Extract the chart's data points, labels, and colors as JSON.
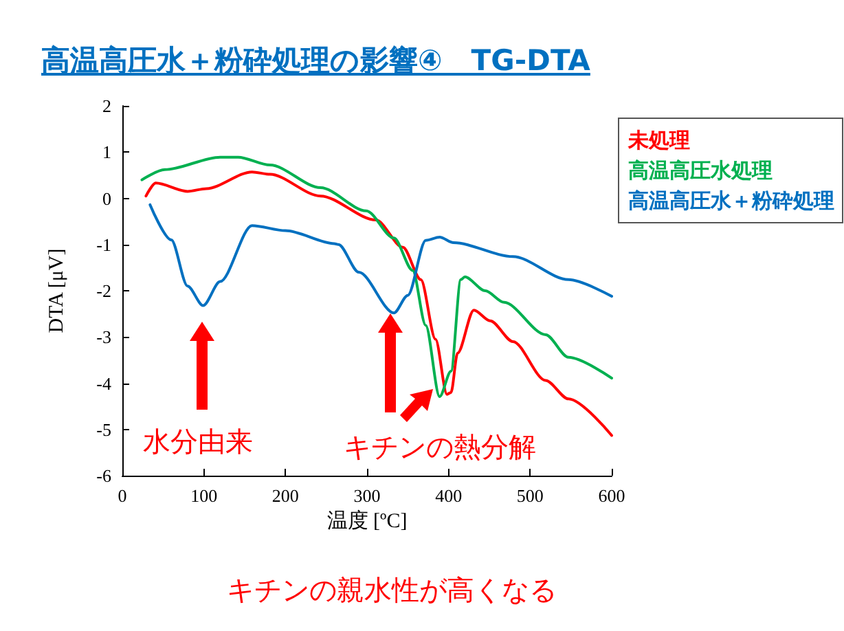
{
  "chart_data": {
    "type": "line",
    "title": "高温高圧水＋粉砕処理の影響④　TG-DTA",
    "xlabel": "温度 [ºC]",
    "ylabel": "DTA [μV]",
    "xlim": [
      0,
      600
    ],
    "xticks": [
      0,
      100,
      200,
      300,
      400,
      500,
      600
    ],
    "ylim": [
      -6,
      2
    ],
    "yticks": [
      -6,
      -5,
      -4,
      -3,
      -2,
      -1,
      0,
      1,
      2
    ],
    "grid": false,
    "legend": "top right",
    "marker": "none",
    "line_style": "solid",
    "annotations": [
      "水分由来",
      "キチンの熱分解",
      "キチンの親水性が高くなる"
    ],
    "series": [
      {
        "name": "未処理",
        "color": "#ff0000",
        "x": [
          29,
          41,
          80,
          103,
          159,
          181,
          243,
          311,
          344,
          366,
          384,
          398,
          403,
          411,
          431,
          451,
          479,
          519,
          547,
          600
        ],
        "values": [
          0.05,
          0.33,
          0.15,
          0.21,
          0.57,
          0.52,
          0.05,
          -0.47,
          -1.06,
          -1.76,
          -3.05,
          -4.24,
          -4.2,
          -3.35,
          -2.42,
          -2.65,
          -3.1,
          -3.94,
          -4.34,
          -5.13
        ]
      },
      {
        "name": "高温高圧水処理",
        "color": "#00b050",
        "x": [
          24,
          52,
          120,
          142,
          181,
          243,
          299,
          333,
          356,
          372,
          389,
          403,
          415,
          420,
          445,
          468,
          519,
          547,
          600
        ],
        "values": [
          0.4,
          0.62,
          0.89,
          0.89,
          0.72,
          0.23,
          -0.27,
          -0.86,
          -1.56,
          -2.75,
          -4.29,
          -3.74,
          -1.76,
          -1.7,
          -2.0,
          -2.25,
          -2.95,
          -3.44,
          -3.89
        ]
      },
      {
        "name": "高温高圧水＋粉砕処理",
        "color": "#0070c0",
        "x": [
          34,
          60,
          80,
          99,
          120,
          159,
          200,
          260,
          265,
          290,
          333,
          350,
          372,
          389,
          406,
          479,
          547,
          600
        ],
        "values": [
          -0.14,
          -0.9,
          -1.9,
          -2.32,
          -1.8,
          -0.59,
          -0.7,
          -0.98,
          -1.0,
          -1.6,
          -2.48,
          -2.1,
          -0.91,
          -0.84,
          -0.96,
          -1.26,
          -1.76,
          -2.12
        ]
      }
    ]
  }
}
